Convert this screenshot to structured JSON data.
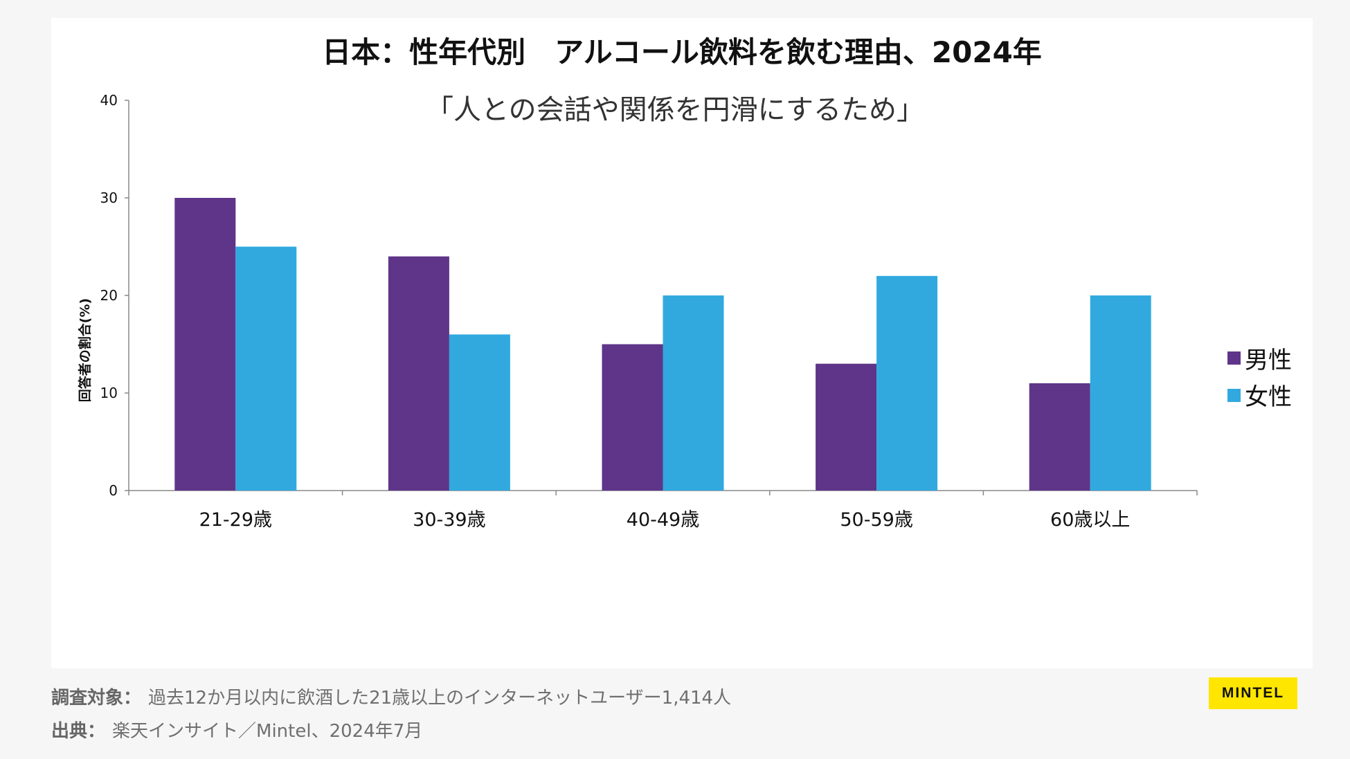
{
  "colors": {
    "male": "#5e3589",
    "female": "#31a9df",
    "axis": "#888888",
    "text": "#111111"
  },
  "chart_data": {
    "type": "bar",
    "title": "日本：性年代別　アルコール飲料を飲む理由、2024年",
    "subtitle": "「人との会話や関係を円滑にするため」",
    "xlabel": "",
    "ylabel": "回答者の割合(%)",
    "ylim": [
      0,
      40
    ],
    "yticks": [
      0,
      10,
      20,
      30,
      40
    ],
    "categories": [
      "21-29歳",
      "30-39歳",
      "40-49歳",
      "50-59歳",
      "60歳以上"
    ],
    "series": [
      {
        "name": "男性",
        "values": [
          30,
          24,
          15,
          13,
          11
        ]
      },
      {
        "name": "女性",
        "values": [
          25,
          16,
          20,
          22,
          20
        ]
      }
    ],
    "legend_position": "right",
    "grid": false
  },
  "footer": {
    "survey_label": "調査対象：",
    "survey_text": "過去12か月以内に飲酒した21歳以上のインターネットユーザー1,414人",
    "source_label": "出典：",
    "source_text": "楽天インサイト／Mintel、2024年7月"
  },
  "brand": {
    "logo_text": "MINTEL"
  }
}
